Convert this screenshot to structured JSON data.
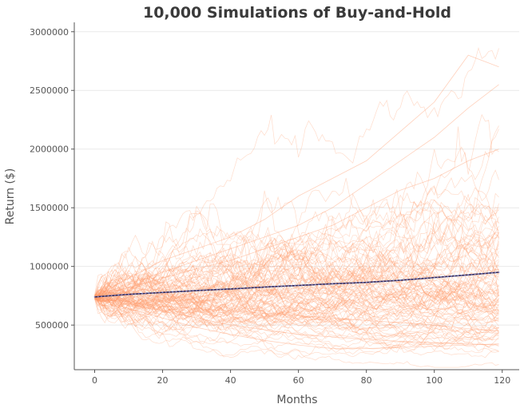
{
  "chart_data": {
    "type": "line",
    "title": "10,000 Simulations of Buy-and-Hold",
    "xlabel": "Months",
    "ylabel": "Return ($)",
    "xlim": [
      -6,
      125
    ],
    "ylim": [
      120000,
      3080000
    ],
    "x_ticks": [
      0,
      20,
      40,
      60,
      80,
      100,
      120
    ],
    "y_ticks": [
      500000,
      1000000,
      1500000,
      2000000,
      2500000,
      3000000
    ],
    "grid": "horizontal",
    "months": 119,
    "start_value": 740000,
    "simulation_color": "#ff9a6a",
    "mean_color": "#2f2a56",
    "mean_marker_color": "#7b7ec4",
    "mean_series": {
      "name": "Mean",
      "x": [
        0,
        10,
        20,
        30,
        40,
        50,
        60,
        70,
        80,
        90,
        100,
        110,
        119
      ],
      "values": [
        740000,
        762000,
        778000,
        794000,
        808000,
        824000,
        838000,
        852000,
        864000,
        882000,
        905000,
        928000,
        950000
      ]
    },
    "simulation_paths": [
      {
        "x": [
          0,
          10,
          20,
          30,
          40,
          50,
          60,
          70,
          80,
          90,
          100,
          110,
          119
        ],
        "values": [
          740000,
          900000,
          1050000,
          1150000,
          1250000,
          1400000,
          1600000,
          1750000,
          1900000,
          2150000,
          2400000,
          2800000,
          2700000
        ]
      },
      {
        "x": [
          0,
          10,
          20,
          30,
          40,
          50,
          60,
          70,
          80,
          90,
          100,
          110,
          119
        ],
        "values": [
          740000,
          850000,
          950000,
          1050000,
          1150000,
          1250000,
          1350000,
          1500000,
          1700000,
          1900000,
          2100000,
          2350000,
          2550000
        ]
      },
      {
        "x": [
          0,
          10,
          20,
          30,
          40,
          50,
          60,
          70,
          80,
          90,
          100,
          110,
          119
        ],
        "values": [
          740000,
          820000,
          900000,
          980000,
          1050000,
          1150000,
          1250000,
          1350000,
          1500000,
          1650000,
          1750000,
          1900000,
          2000000
        ]
      },
      {
        "x": [
          0,
          10,
          20,
          30,
          40,
          50,
          60,
          70,
          80,
          90,
          100,
          110,
          119
        ],
        "values": [
          740000,
          680000,
          620000,
          560000,
          500000,
          460000,
          420000,
          400000,
          380000,
          360000,
          350000,
          340000,
          330000
        ]
      },
      {
        "x": [
          0,
          10,
          20,
          30,
          40,
          50,
          60,
          70,
          80,
          90,
          100,
          110,
          119
        ],
        "values": [
          740000,
          640000,
          560000,
          480000,
          420000,
          370000,
          330000,
          300000,
          300000,
          310000,
          320000,
          330000,
          340000
        ]
      },
      {
        "x": [
          0,
          10,
          20,
          30,
          40,
          50,
          60,
          70,
          80,
          90,
          100,
          110,
          119
        ],
        "values": [
          740000,
          700000,
          660000,
          640000,
          620000,
          600000,
          580000,
          560000,
          540000,
          520000,
          500000,
          470000,
          450000
        ]
      }
    ]
  }
}
